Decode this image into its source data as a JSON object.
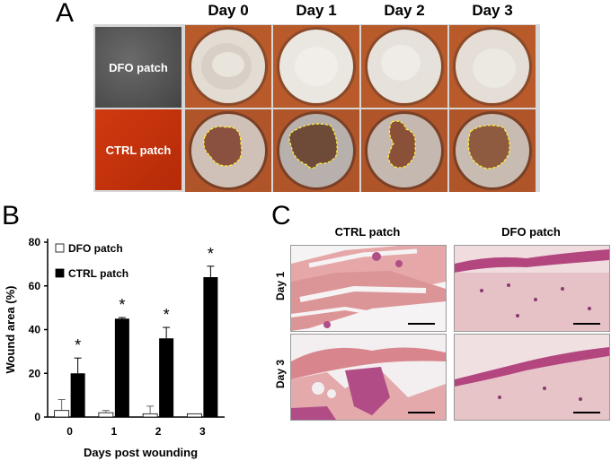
{
  "panel_a": {
    "letter": "A",
    "days": [
      "Day 0",
      "Day 1",
      "Day 2",
      "Day 3"
    ],
    "rows": [
      "DFO patch",
      "CTRL patch"
    ]
  },
  "panel_b": {
    "letter": "B"
  },
  "panel_c": {
    "letter": "C",
    "columns": [
      "CTRL patch",
      "DFO patch"
    ],
    "rows": [
      "Day 1",
      "Day 3"
    ]
  },
  "chart_data": {
    "type": "bar",
    "categories": [
      "0",
      "1",
      "2",
      "3"
    ],
    "series": [
      {
        "name": "DFO patch",
        "values": [
          3,
          2,
          1.5,
          1.5
        ],
        "errors": [
          5,
          1,
          3.5,
          0
        ],
        "color": "#ffffff"
      },
      {
        "name": "CTRL patch",
        "values": [
          20,
          45,
          36,
          64
        ],
        "errors": [
          7,
          0.5,
          5,
          5
        ],
        "color": "#000000"
      }
    ],
    "significance": [
      "*",
      "*",
      "*",
      "*"
    ],
    "xlabel": "Days post wounding",
    "ylabel": "Wound area (%)",
    "ylim": [
      0,
      80
    ],
    "yticks": [
      "0",
      "20",
      "40",
      "60",
      "80"
    ],
    "legend_position": "top-left"
  }
}
